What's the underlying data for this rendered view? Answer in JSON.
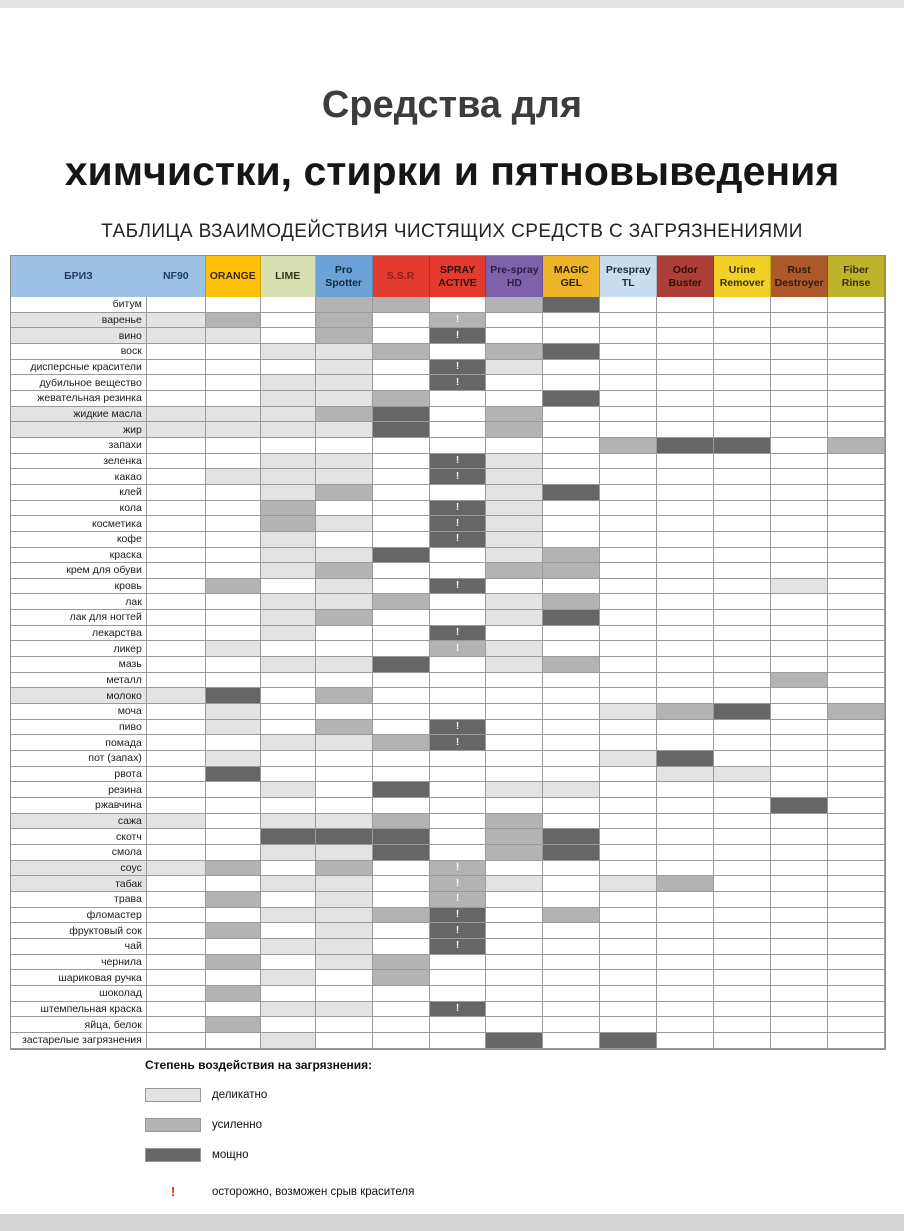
{
  "page": {
    "title_line1": "Средства для",
    "title_line2": "химчистки, стирки и пятновыведения",
    "subtitle": "ТАБЛИЦА ВЗАИМОДЕЙСТВИЯ ЧИСТЯЩИХ СРЕДСТВ С ЗАГРЯЗНЕНИЯМИ"
  },
  "chart_data": {
    "type": "heatmap",
    "title": "ТАБЛИЦА ВЗАИМОДЕЙСТВИЯ ЧИСТЯЩИХ СРЕДСТВ С ЗАГРЯЗНЕНИЯМИ",
    "value_scale": {
      "0": "",
      "1": "деликатно",
      "2": "усиленно",
      "3": "мощно",
      "!": "осторожно, возможен срыв красителя"
    },
    "columns": [
      {
        "name": "БРИЗ",
        "color": "#9cc2e5",
        "text_color": "#1f3a5f"
      },
      {
        "name": "NF90",
        "color": "#9cc2e5",
        "text_color": "#1f3a5f"
      },
      {
        "name": "ORANGE",
        "color": "#fdc10a",
        "text_color": "#3a2c00"
      },
      {
        "name": "LIME",
        "color": "#d8dfb0",
        "text_color": "#33381c"
      },
      {
        "name": "Pro Spotter",
        "color": "#6ca2d6",
        "text_color": "#102a43"
      },
      {
        "name": "S.S.R",
        "color": "#e23a2e",
        "text_color": "#8d241a"
      },
      {
        "name": "SPRAY ACTIVE",
        "color": "#e23a2e",
        "text_color": "#2d0f0b"
      },
      {
        "name": "Pre-spray HD",
        "color": "#7d62ab",
        "text_color": "#2a1e45"
      },
      {
        "name": "MAGIC GEL",
        "color": "#eeb52b",
        "text_color": "#2e2305"
      },
      {
        "name": "Prespray TL",
        "color": "#c9ddf0",
        "text_color": "#1c2c3c"
      },
      {
        "name": "Odor Buster",
        "color": "#ac3f38",
        "text_color": "#2e0d0a"
      },
      {
        "name": "Urine Remover",
        "color": "#f2d028",
        "text_color": "#3a3105"
      },
      {
        "name": "Rust Destroyer",
        "color": "#ad5a2b",
        "text_color": "#33190a"
      },
      {
        "name": "Fiber Rinse",
        "color": "#bfb32b",
        "text_color": "#333005"
      }
    ],
    "rows": [
      {
        "label": "битум",
        "values": [
          "0",
          "0",
          "0",
          "0",
          "2",
          "2",
          "0",
          "2",
          "3",
          "0",
          "0",
          "0",
          "0",
          "0"
        ]
      },
      {
        "label": "варенье",
        "values": [
          "1",
          "1",
          "2",
          "0",
          "2",
          "0",
          "2!",
          "0",
          "0",
          "0",
          "0",
          "0",
          "0",
          "0"
        ]
      },
      {
        "label": "вино",
        "values": [
          "1",
          "1",
          "1",
          "0",
          "2",
          "0",
          "3!",
          "0",
          "0",
          "0",
          "0",
          "0",
          "0",
          "0"
        ]
      },
      {
        "label": "воск",
        "values": [
          "0",
          "0",
          "0",
          "1",
          "1",
          "2",
          "0",
          "2",
          "3",
          "0",
          "0",
          "0",
          "0",
          "0"
        ]
      },
      {
        "label": "дисперсные красители",
        "values": [
          "0",
          "0",
          "0",
          "0",
          "1",
          "0",
          "3!",
          "1",
          "0",
          "0",
          "0",
          "0",
          "0",
          "0"
        ]
      },
      {
        "label": "дубильное вещество",
        "values": [
          "0",
          "0",
          "0",
          "1",
          "1",
          "0",
          "3!",
          "0",
          "0",
          "0",
          "0",
          "0",
          "0",
          "0"
        ]
      },
      {
        "label": "жевательная резинка",
        "values": [
          "0",
          "0",
          "0",
          "1",
          "1",
          "2",
          "0",
          "0",
          "3",
          "0",
          "0",
          "0",
          "0",
          "0"
        ]
      },
      {
        "label": "жидкие масла",
        "values": [
          "1",
          "1",
          "1",
          "1",
          "2",
          "3",
          "0",
          "2",
          "0",
          "0",
          "0",
          "0",
          "0",
          "0"
        ]
      },
      {
        "label": "жир",
        "values": [
          "1",
          "1",
          "1",
          "1",
          "1",
          "3",
          "0",
          "2",
          "0",
          "0",
          "0",
          "0",
          "0",
          "0"
        ]
      },
      {
        "label": "запахи",
        "values": [
          "0",
          "0",
          "0",
          "0",
          "0",
          "0",
          "0",
          "0",
          "0",
          "2",
          "3",
          "3",
          "0",
          "2"
        ]
      },
      {
        "label": "зеленка",
        "values": [
          "0",
          "0",
          "0",
          "1",
          "1",
          "0",
          "3!",
          "1",
          "0",
          "0",
          "0",
          "0",
          "0",
          "0"
        ]
      },
      {
        "label": "какао",
        "values": [
          "0",
          "0",
          "1",
          "1",
          "1",
          "0",
          "3!",
          "1",
          "0",
          "0",
          "0",
          "0",
          "0",
          "0"
        ]
      },
      {
        "label": "клей",
        "values": [
          "0",
          "0",
          "0",
          "1",
          "2",
          "0",
          "0",
          "1",
          "3",
          "0",
          "0",
          "0",
          "0",
          "0"
        ]
      },
      {
        "label": "кола",
        "values": [
          "0",
          "0",
          "0",
          "2",
          "0",
          "0",
          "3!",
          "1",
          "0",
          "0",
          "0",
          "0",
          "0",
          "0"
        ]
      },
      {
        "label": "косметика",
        "values": [
          "0",
          "0",
          "0",
          "2",
          "1",
          "0",
          "3!",
          "1",
          "0",
          "0",
          "0",
          "0",
          "0",
          "0"
        ]
      },
      {
        "label": "кофе",
        "values": [
          "0",
          "0",
          "0",
          "1",
          "0",
          "0",
          "3!",
          "1",
          "0",
          "0",
          "0",
          "0",
          "0",
          "0"
        ]
      },
      {
        "label": "краска",
        "values": [
          "0",
          "0",
          "0",
          "1",
          "1",
          "3",
          "0",
          "1",
          "2",
          "0",
          "0",
          "0",
          "0",
          "0"
        ]
      },
      {
        "label": "крем для обуви",
        "values": [
          "0",
          "0",
          "0",
          "1",
          "2",
          "0",
          "0",
          "2",
          "2",
          "0",
          "0",
          "0",
          "0",
          "0"
        ]
      },
      {
        "label": "кровь",
        "values": [
          "0",
          "0",
          "2",
          "0",
          "1",
          "0",
          "3!",
          "0",
          "0",
          "0",
          "0",
          "0",
          "1",
          "0"
        ]
      },
      {
        "label": "лак",
        "values": [
          "0",
          "0",
          "0",
          "1",
          "1",
          "2",
          "0",
          "1",
          "2",
          "0",
          "0",
          "0",
          "0",
          "0"
        ]
      },
      {
        "label": "лак для ногтей",
        "values": [
          "0",
          "0",
          "0",
          "1",
          "2",
          "0",
          "0",
          "1",
          "3",
          "0",
          "0",
          "0",
          "0",
          "0"
        ]
      },
      {
        "label": "лекарства",
        "values": [
          "0",
          "0",
          "0",
          "1",
          "0",
          "0",
          "3!",
          "0",
          "0",
          "0",
          "0",
          "0",
          "0",
          "0"
        ]
      },
      {
        "label": "ликер",
        "values": [
          "0",
          "0",
          "1",
          "0",
          "0",
          "0",
          "2!",
          "1",
          "0",
          "0",
          "0",
          "0",
          "0",
          "0"
        ]
      },
      {
        "label": "мазь",
        "values": [
          "0",
          "0",
          "0",
          "1",
          "1",
          "3",
          "0",
          "1",
          "2",
          "0",
          "0",
          "0",
          "0",
          "0"
        ]
      },
      {
        "label": "металл",
        "values": [
          "0",
          "0",
          "0",
          "0",
          "0",
          "0",
          "0",
          "0",
          "0",
          "0",
          "0",
          "0",
          "2",
          "0"
        ]
      },
      {
        "label": "молоко",
        "values": [
          "1",
          "1",
          "3",
          "0",
          "2",
          "0",
          "0",
          "0",
          "0",
          "0",
          "0",
          "0",
          "0",
          "0"
        ]
      },
      {
        "label": "моча",
        "values": [
          "0",
          "0",
          "1",
          "0",
          "0",
          "0",
          "0",
          "0",
          "0",
          "1",
          "2",
          "3",
          "0",
          "2"
        ]
      },
      {
        "label": "пиво",
        "values": [
          "0",
          "0",
          "1",
          "0",
          "2",
          "0",
          "3!",
          "0",
          "0",
          "0",
          "0",
          "0",
          "0",
          "0"
        ]
      },
      {
        "label": "помада",
        "values": [
          "0",
          "0",
          "0",
          "1",
          "1",
          "2",
          "3!",
          "0",
          "0",
          "0",
          "0",
          "0",
          "0",
          "0"
        ]
      },
      {
        "label": "пот (запах)",
        "values": [
          "0",
          "0",
          "1",
          "0",
          "0",
          "0",
          "0",
          "0",
          "0",
          "1",
          "3",
          "0",
          "0",
          "0"
        ]
      },
      {
        "label": "рвота",
        "values": [
          "0",
          "0",
          "3",
          "0",
          "0",
          "0",
          "0",
          "0",
          "0",
          "0",
          "1",
          "1",
          "0",
          "0"
        ]
      },
      {
        "label": "резина",
        "values": [
          "0",
          "0",
          "0",
          "1",
          "0",
          "3",
          "0",
          "1",
          "1",
          "0",
          "0",
          "0",
          "0",
          "0"
        ]
      },
      {
        "label": "ржавчина",
        "values": [
          "0",
          "0",
          "0",
          "0",
          "0",
          "0",
          "0",
          "0",
          "0",
          "0",
          "0",
          "0",
          "3",
          "0"
        ]
      },
      {
        "label": "сажа",
        "values": [
          "1",
          "1",
          "0",
          "1",
          "1",
          "2",
          "0",
          "2",
          "0",
          "0",
          "0",
          "0",
          "0",
          "0"
        ]
      },
      {
        "label": "скотч",
        "values": [
          "0",
          "0",
          "0",
          "3",
          "3",
          "3",
          "0",
          "2",
          "3",
          "0",
          "0",
          "0",
          "0",
          "0"
        ]
      },
      {
        "label": "смола",
        "values": [
          "0",
          "0",
          "0",
          "1",
          "1",
          "3",
          "0",
          "2",
          "3",
          "0",
          "0",
          "0",
          "0",
          "0"
        ]
      },
      {
        "label": "соус",
        "values": [
          "1",
          "1",
          "2",
          "0",
          "2",
          "0",
          "2!",
          "0",
          "0",
          "0",
          "0",
          "0",
          "0",
          "0"
        ]
      },
      {
        "label": "табак",
        "values": [
          "1",
          "0",
          "0",
          "1",
          "1",
          "0",
          "2!",
          "1",
          "0",
          "1",
          "2",
          "0",
          "0",
          "0"
        ]
      },
      {
        "label": "трава",
        "values": [
          "0",
          "0",
          "2",
          "0",
          "1",
          "0",
          "2!",
          "0",
          "0",
          "0",
          "0",
          "0",
          "0",
          "0"
        ]
      },
      {
        "label": "фломастер",
        "values": [
          "0",
          "0",
          "0",
          "1",
          "1",
          "2",
          "3!",
          "0",
          "2",
          "0",
          "0",
          "0",
          "0",
          "0"
        ]
      },
      {
        "label": "фруктовый сок",
        "values": [
          "0",
          "0",
          "2",
          "0",
          "1",
          "0",
          "3!",
          "0",
          "0",
          "0",
          "0",
          "0",
          "0",
          "0"
        ]
      },
      {
        "label": "чай",
        "values": [
          "0",
          "0",
          "0",
          "1",
          "1",
          "0",
          "3!",
          "0",
          "0",
          "0",
          "0",
          "0",
          "0",
          "0"
        ]
      },
      {
        "label": "чернила",
        "values": [
          "0",
          "0",
          "2",
          "0",
          "1",
          "2",
          "0",
          "0",
          "0",
          "0",
          "0",
          "0",
          "0",
          "0"
        ]
      },
      {
        "label": "шариковая ручка",
        "values": [
          "0",
          "0",
          "0",
          "1",
          "0",
          "2",
          "0",
          "0",
          "0",
          "0",
          "0",
          "0",
          "0",
          "0"
        ]
      },
      {
        "label": "шоколад",
        "values": [
          "0",
          "0",
          "2",
          "0",
          "0",
          "0",
          "0",
          "0",
          "0",
          "0",
          "0",
          "0",
          "0",
          "0"
        ]
      },
      {
        "label": "штемпельная краска",
        "values": [
          "0",
          "0",
          "0",
          "1",
          "1",
          "0",
          "3!",
          "0",
          "0",
          "0",
          "0",
          "0",
          "0",
          "0"
        ]
      },
      {
        "label": "яйца, белок",
        "values": [
          "0",
          "0",
          "2",
          "0",
          "0",
          "0",
          "0",
          "0",
          "0",
          "0",
          "0",
          "0",
          "0",
          "0"
        ]
      },
      {
        "label": "застарелые загрязнения",
        "values": [
          "0",
          "0",
          "0",
          "1",
          "0",
          "0",
          "0",
          "3",
          "0",
          "3",
          "0",
          "0",
          "0",
          "0"
        ]
      }
    ]
  },
  "legend": {
    "title": "Степень воздействия на загрязнения:",
    "items": [
      {
        "level": "1",
        "label": "деликатно"
      },
      {
        "level": "2",
        "label": "усиленно"
      },
      {
        "level": "3",
        "label": "мощно"
      }
    ],
    "warning": {
      "symbol": "!",
      "label": "осторожно, возможен срыв красителя"
    }
  },
  "colors": {
    "shade_none": "#ffffff",
    "shade_light": "#e3e3e3",
    "shade_medium": "#b3b3b3",
    "shade_dark": "#666666",
    "grid": "#9a9a9a",
    "warning": "#e3251d"
  }
}
